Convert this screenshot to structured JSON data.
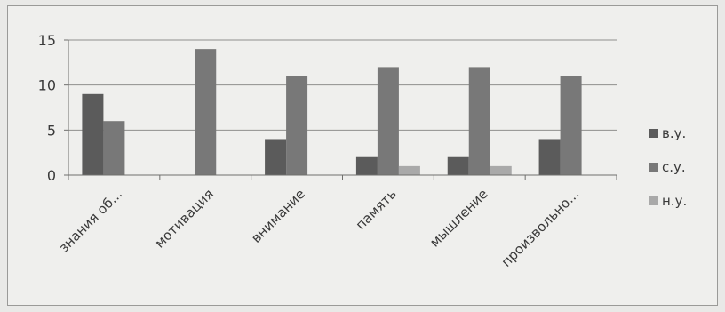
{
  "chart_data": {
    "type": "bar",
    "categories": [
      "знания об...",
      "мотивация",
      "внимание",
      "память",
      "мышление",
      "произвольно..."
    ],
    "series": [
      {
        "name": "в.у.",
        "values": [
          9,
          0,
          4,
          2,
          2,
          4
        ],
        "color": "#5b5b5b"
      },
      {
        "name": "с.у.",
        "values": [
          6,
          14,
          11,
          12,
          12,
          11
        ],
        "color": "#787878"
      },
      {
        "name": "н.у.",
        "values": [
          0,
          0,
          0,
          1,
          1,
          0
        ],
        "color": "#a9a9a9"
      }
    ],
    "ylim": [
      0,
      15
    ],
    "yticks": [
      0,
      5,
      10,
      15
    ],
    "grid": true,
    "legend": "right"
  }
}
